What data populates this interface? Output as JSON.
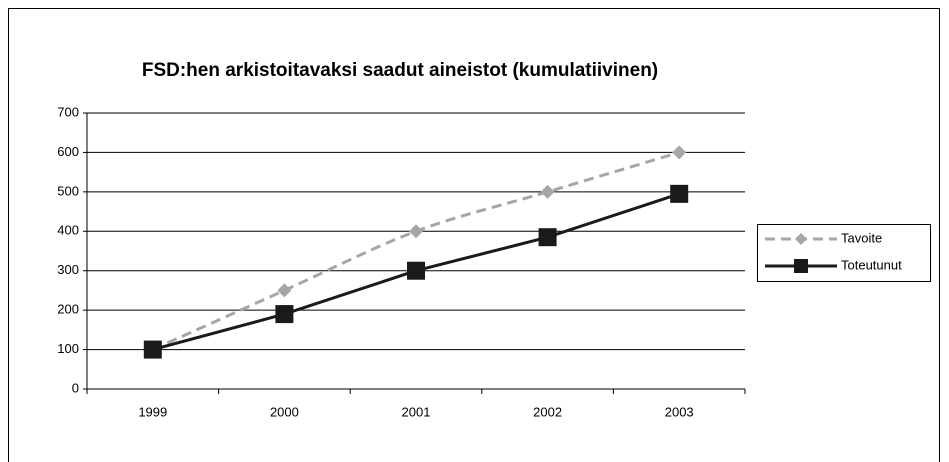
{
  "chart_data": {
    "type": "line",
    "title": "FSD:hen arkistoitavaksi saadut aineistot (kumulatiivinen)",
    "categories": [
      "1999",
      "2000",
      "2001",
      "2002",
      "2003"
    ],
    "series": [
      {
        "name": "Tavoite",
        "color": "#a6a6a6",
        "marker": "diamond",
        "dashed": true,
        "smooth": true,
        "values": [
          100,
          250,
          400,
          500,
          600
        ]
      },
      {
        "name": "Toteutunut",
        "color": "#1a1a1a",
        "marker": "square",
        "dashed": false,
        "smooth": false,
        "values": [
          100,
          190,
          300,
          385,
          495
        ]
      }
    ],
    "ylim": [
      0,
      700
    ],
    "yticks": [
      0,
      100,
      200,
      300,
      400,
      500,
      600,
      700
    ],
    "grid": true,
    "legend": "right"
  }
}
